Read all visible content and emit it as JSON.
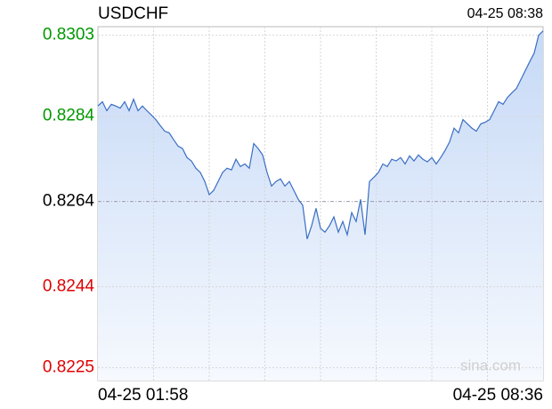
{
  "chart_data": {
    "type": "line",
    "title": "USDCHF",
    "timestamp": "04-25 08:38",
    "watermark": "sina.com",
    "categories": [
      "04-25 01:58",
      null,
      null,
      null,
      null,
      null,
      null,
      null,
      null,
      null,
      null,
      null,
      null,
      null,
      null,
      null,
      null,
      null,
      null,
      null,
      null,
      null,
      null,
      null,
      null,
      null,
      null,
      null,
      null,
      null,
      null,
      null,
      null,
      null,
      null,
      null,
      null,
      null,
      null,
      null,
      null,
      null,
      null,
      null,
      null,
      null,
      null,
      null,
      null,
      null,
      null,
      null,
      null,
      null,
      null,
      null,
      null,
      null,
      null,
      null,
      null,
      null,
      null,
      null,
      null,
      null,
      null,
      null,
      null,
      null,
      null,
      null,
      null,
      null,
      null,
      null,
      null,
      null,
      null,
      null,
      null,
      null,
      null,
      null,
      null,
      null,
      null,
      null,
      null,
      null,
      null,
      null,
      null,
      null,
      null,
      null,
      null,
      null,
      null,
      null,
      "04-25 08:36"
    ],
    "series": [
      {
        "name": "USDCHF",
        "color": "#3a6ec3",
        "values": [
          0.82864,
          0.82874,
          0.82853,
          0.82868,
          0.82864,
          0.82859,
          0.82874,
          0.82853,
          0.8288,
          0.82853,
          0.82864,
          0.82853,
          0.82843,
          0.82832,
          0.82818,
          0.82805,
          0.82801,
          0.82785,
          0.8277,
          0.82764,
          0.82743,
          0.82735,
          0.82718,
          0.82708,
          0.82687,
          0.82656,
          0.82666,
          0.82687,
          0.82708,
          0.82718,
          0.82714,
          0.82739,
          0.82722,
          0.82728,
          0.82718,
          0.82776,
          0.82764,
          0.82749,
          0.82708,
          0.82676,
          0.82687,
          0.82693,
          0.82676,
          0.82687,
          0.82666,
          0.82645,
          0.82631,
          0.82552,
          0.82583,
          0.82624,
          0.82577,
          0.82568,
          0.82583,
          0.82604,
          0.82568,
          0.82593,
          0.82562,
          0.82614,
          0.82593,
          0.82645,
          0.82562,
          0.82687,
          0.82697,
          0.82708,
          0.82728,
          0.82722,
          0.82739,
          0.82735,
          0.82743,
          0.82728,
          0.82747,
          0.82735,
          0.82749,
          0.82739,
          0.82733,
          0.82743,
          0.82728,
          0.82743,
          0.8276,
          0.8278,
          0.82812,
          0.82801,
          0.82832,
          0.82822,
          0.82812,
          0.82805,
          0.82822,
          0.82826,
          0.82832,
          0.82853,
          0.82874,
          0.82868,
          0.82884,
          0.82895,
          0.82905,
          0.82926,
          0.82947,
          0.82968,
          0.82988,
          0.8303,
          0.8304
        ]
      }
    ],
    "ylim": [
      0.8222,
      0.8305
    ],
    "yticks": [
      0.8303,
      0.8284,
      0.8264,
      0.8244,
      0.8225
    ],
    "ytick_colors": [
      "#009900",
      "#009900",
      "#000000",
      "#e00000",
      "#e00000"
    ],
    "grid": true
  }
}
